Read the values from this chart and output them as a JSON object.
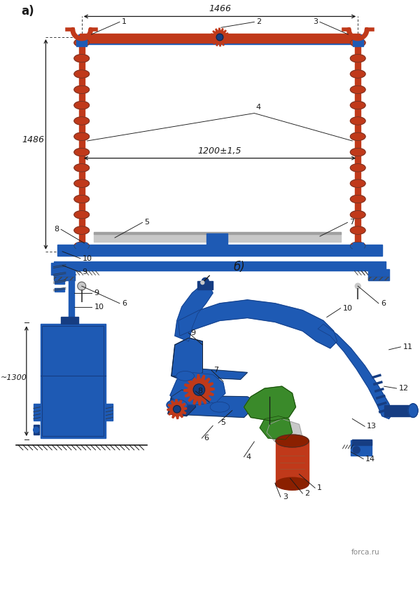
{
  "title_a": "а)",
  "title_b": "б)",
  "dim_1466": "1466",
  "dim_1486": "1486",
  "dim_1200": "1200±1,5",
  "dim_1300": "~1300",
  "bg_color": "#ffffff",
  "blue": "#1e5ab4",
  "dark_blue": "#163d82",
  "red_brown": "#c0391a",
  "dark_red": "#8b2000",
  "gray": "#a0a0a0",
  "light_gray": "#c8c8c8",
  "green": "#3a8a2a",
  "line_color": "#1a1a1a",
  "forca_text": "forca.ru"
}
